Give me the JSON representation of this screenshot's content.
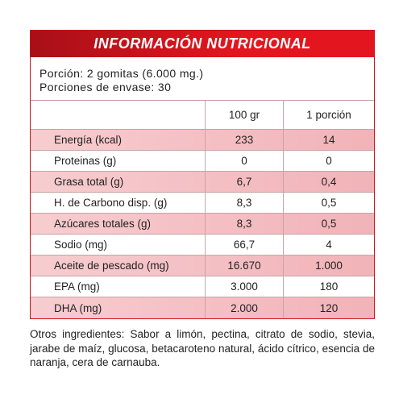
{
  "header": {
    "title": "INFORMACIÓN NUTRICIONAL"
  },
  "serving": [
    "Porción: 2 gomitas (6.000 mg.)",
    "Porciones de envase: 30"
  ],
  "table": {
    "columns": [
      "100 gr",
      "1 porción"
    ],
    "rows": [
      [
        "Energía (kcal)",
        "233",
        "14"
      ],
      [
        "Proteinas (g)",
        "0",
        "0"
      ],
      [
        "Grasa total (g)",
        "6,7",
        "0,4"
      ],
      [
        "H. de Carbono disp. (g)",
        "8,3",
        "0,5"
      ],
      [
        "Azúcares totales (g)",
        "8,3",
        "0,5"
      ],
      [
        "Sodio (mg)",
        "66,7",
        "4"
      ],
      [
        "Aceite de pescado (mg)",
        "16.670",
        "1.000"
      ],
      [
        "EPA (mg)",
        "3.000",
        "180"
      ],
      [
        "DHA (mg)",
        "2.000",
        "120"
      ]
    ]
  },
  "footer": "Otros ingredientes: Sabor a limón, pectina, citrato de sodio, stevia, jarabe de maíz, glucosa, betacaroteno natural, ácido cítrico, esencia de naranja, cera de carnauba."
}
